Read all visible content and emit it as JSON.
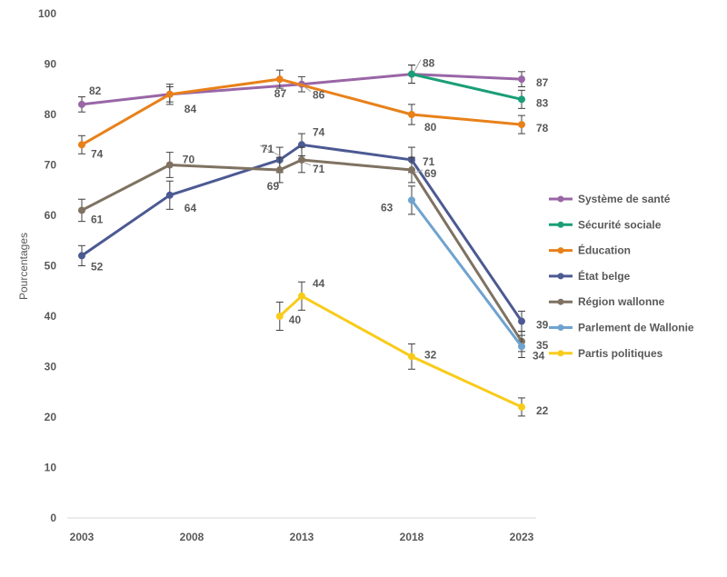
{
  "chart_data": {
    "type": "line",
    "ylabel": "Pourcentages",
    "ylim": [
      0,
      100
    ],
    "yticks": [
      0,
      10,
      20,
      30,
      40,
      50,
      60,
      70,
      80,
      90,
      100
    ],
    "xticks": [
      2003,
      2008,
      2013,
      2018,
      2023
    ],
    "grid": false,
    "error_bars": true,
    "legend_position": "right",
    "series": [
      {
        "name": "Système de santé",
        "color": "#9966A6",
        "points": [
          {
            "x": 2003,
            "y": 82,
            "err": 1.5,
            "label": "82"
          },
          {
            "x": 2007,
            "y": 84,
            "err": 1.5,
            "label": ""
          },
          {
            "x": 2013,
            "y": 86,
            "err": 1.5,
            "label": "86"
          },
          {
            "x": 2018,
            "y": 88,
            "err": 1.8,
            "label": ""
          },
          {
            "x": 2023,
            "y": 87,
            "err": 1.5,
            "label": "87"
          }
        ]
      },
      {
        "name": "Sécurité sociale",
        "color": "#1A9E77",
        "points": [
          {
            "x": 2018,
            "y": 88,
            "err": 1.8,
            "label": "88"
          },
          {
            "x": 2023,
            "y": 83,
            "err": 1.8,
            "label": "83"
          }
        ]
      },
      {
        "name": "Éducation",
        "color": "#E8811A",
        "points": [
          {
            "x": 2003,
            "y": 74,
            "err": 1.8,
            "label": "74"
          },
          {
            "x": 2007,
            "y": 84,
            "err": 2.0,
            "label": "84"
          },
          {
            "x": 2012,
            "y": 87,
            "err": 1.8,
            "label": "87"
          },
          {
            "x": 2018,
            "y": 80,
            "err": 2.0,
            "label": "80"
          },
          {
            "x": 2023,
            "y": 78,
            "err": 1.8,
            "label": "78"
          }
        ]
      },
      {
        "name": "État belge",
        "color": "#4C5A92",
        "points": [
          {
            "x": 2003,
            "y": 52,
            "err": 2.0,
            "label": "52"
          },
          {
            "x": 2007,
            "y": 64,
            "err": 2.8,
            "label": "64"
          },
          {
            "x": 2012,
            "y": 71,
            "err": 2.5,
            "label": "71"
          },
          {
            "x": 2013,
            "y": 74,
            "err": 2.2,
            "label": "74"
          },
          {
            "x": 2018,
            "y": 71,
            "err": 2.5,
            "label": "71"
          },
          {
            "x": 2023,
            "y": 39,
            "err": 2.0,
            "label": "39"
          }
        ]
      },
      {
        "name": "Région wallonne",
        "color": "#7F7262",
        "points": [
          {
            "x": 2003,
            "y": 61,
            "err": 2.2,
            "label": "61"
          },
          {
            "x": 2007,
            "y": 70,
            "err": 2.5,
            "label": "70"
          },
          {
            "x": 2012,
            "y": 69,
            "err": 2.5,
            "label": "69"
          },
          {
            "x": 2013,
            "y": 71,
            "err": 2.5,
            "label": "71"
          },
          {
            "x": 2018,
            "y": 69,
            "err": 2.5,
            "label": "69"
          },
          {
            "x": 2023,
            "y": 35,
            "err": 2.0,
            "label": "35"
          }
        ]
      },
      {
        "name": "Parlement de Wallonie",
        "color": "#6FA3CF",
        "points": [
          {
            "x": 2018,
            "y": 63,
            "err": 2.8,
            "label": "63"
          },
          {
            "x": 2023,
            "y": 34,
            "err": 2.2,
            "label": "34"
          }
        ]
      },
      {
        "name": "Partis politiques",
        "color": "#F9CB1A",
        "points": [
          {
            "x": 2012,
            "y": 40,
            "err": 2.8,
            "label": "40"
          },
          {
            "x": 2013,
            "y": 44,
            "err": 2.8,
            "label": "44"
          },
          {
            "x": 2018,
            "y": 32,
            "err": 2.5,
            "label": "32"
          },
          {
            "x": 2023,
            "y": 22,
            "err": 1.8,
            "label": "22"
          }
        ]
      }
    ]
  }
}
